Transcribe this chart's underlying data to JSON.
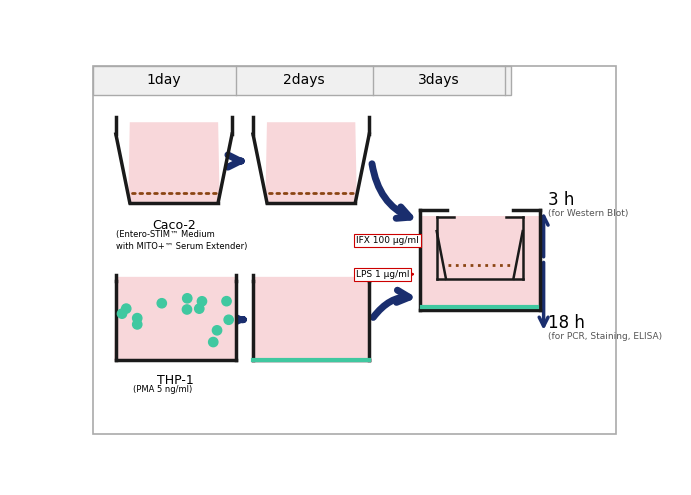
{
  "bg_color": "#ffffff",
  "header_bg": "#f0f0f0",
  "day_labels": [
    "1day",
    "2days",
    "3days"
  ],
  "well_fill_color": "#f8d7da",
  "well_outline_color": "#1a1a1a",
  "membrane_color": "#8B4513",
  "teal_color": "#40c8a0",
  "dark_blue": "#1a2e6e",
  "red_color": "#cc0000",
  "label_ifx": "IFX 100 μg/ml",
  "label_lps": "LPS 1 μg/ml",
  "label_caco2": "Caco-2",
  "label_caco2_sub": "(Entero-STIM™ Medium\nwith MITO+™ Serum Extender)",
  "label_thp1": "THP-1",
  "label_thp1_sub": "(PMA 5 ng/ml)",
  "label_3h": "3 h",
  "label_3h_sub": "(for Western Blot)",
  "label_18h": "18 h",
  "label_18h_sub": "(for PCR, Staining, ELISA)"
}
